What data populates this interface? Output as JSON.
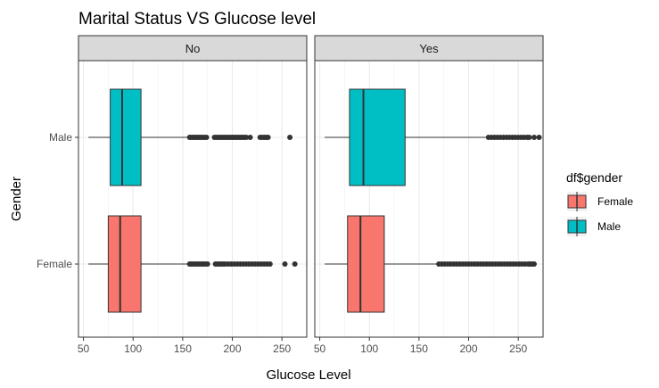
{
  "chart_data": {
    "type": "boxplot",
    "title": "Marital Status VS Glucose level",
    "xlabel": "Glucose Level",
    "ylabel": "Gender",
    "xlim": [
      45,
      275
    ],
    "x_ticks": [
      50,
      100,
      150,
      200,
      250
    ],
    "categories": [
      "Male",
      "Female"
    ],
    "facets": [
      "No",
      "Yes"
    ],
    "legend": {
      "title": "df$gender",
      "position": "right",
      "entries": [
        {
          "name": "Female",
          "color": "#F8766D"
        },
        {
          "name": "Male",
          "color": "#00BFC4"
        }
      ]
    },
    "grid": true,
    "panels": [
      {
        "facet": "No",
        "boxes": [
          {
            "group": "Male",
            "color": "#00BFC4",
            "whisker_low": 55,
            "q1": 77,
            "median": 89,
            "q3": 108,
            "whisker_high": 155,
            "outliers": [
              157,
              158,
              160,
              162,
              163,
              165,
              166,
              168,
              170,
              172,
              174,
              182,
              184,
              186,
              188,
              190,
              192,
              194,
              196,
              198,
              200,
              202,
              204,
              206,
              208,
              210,
              212,
              214,
              218,
              228,
              230,
              232,
              234,
              236,
              258
            ]
          },
          {
            "group": "Female",
            "color": "#F8766D",
            "whisker_low": 55,
            "q1": 75,
            "median": 87,
            "q3": 108,
            "whisker_high": 155,
            "outliers": [
              157,
              159,
              161,
              163,
              165,
              167,
              169,
              171,
              173,
              175,
              183,
              185,
              187,
              189,
              191,
              193,
              196,
              199,
              202,
              205,
              208,
              211,
              214,
              217,
              220,
              223,
              226,
              229,
              232,
              235,
              238,
              253,
              263
            ]
          }
        ]
      },
      {
        "facet": "Yes",
        "boxes": [
          {
            "group": "Male",
            "color": "#00BFC4",
            "whisker_low": 55,
            "q1": 80,
            "median": 94,
            "q3": 136,
            "whisker_high": 218,
            "outliers": [
              220,
              223,
              226,
              229,
              232,
              235,
              238,
              241,
              244,
              247,
              250,
              253,
              256,
              259,
              261,
              266,
              271
            ]
          },
          {
            "group": "Female",
            "color": "#F8766D",
            "whisker_low": 55,
            "q1": 78,
            "median": 91,
            "q3": 115,
            "whisker_high": 168,
            "outliers": [
              170,
              173,
              176,
              179,
              182,
              185,
              188,
              191,
              194,
              197,
              200,
              203,
              206,
              209,
              212,
              215,
              218,
              221,
              224,
              227,
              230,
              233,
              236,
              239,
              242,
              245,
              248,
              251,
              254,
              257,
              260,
              262,
              264,
              266
            ]
          }
        ]
      }
    ]
  }
}
